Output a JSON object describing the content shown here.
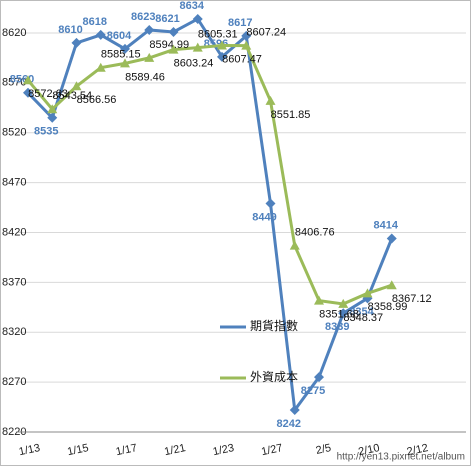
{
  "chart_data": {
    "type": "line",
    "categories": [
      "1/13",
      null,
      "1/15",
      null,
      "1/17",
      null,
      "1/21",
      null,
      "1/23",
      null,
      "1/27",
      null,
      "2/5",
      null,
      "2/10",
      null,
      "2/12"
    ],
    "series": [
      {
        "name": "期貨指數",
        "color": "#4f81bd",
        "marker": "diamond",
        "values": [
          8560,
          8535,
          8610,
          8618,
          8604,
          8623,
          8621,
          8634,
          8596,
          8617,
          8449,
          8242,
          8275,
          8339,
          8354,
          8414,
          null
        ]
      },
      {
        "name": "外資成本",
        "color": "#9bbb59",
        "marker": "triangle",
        "values": [
          8572.63,
          8543.54,
          8566.56,
          8585.15,
          8589.46,
          8594.99,
          8603.24,
          8605.31,
          8607.47,
          8607.24,
          8551.85,
          8406.76,
          8351.68,
          8348.37,
          8358.99,
          8367.12,
          null
        ]
      }
    ],
    "ylim": [
      8220,
      8645
    ],
    "yticks": [
      8220,
      8270,
      8320,
      8370,
      8420,
      8470,
      8520,
      8570,
      8620
    ],
    "grid": true,
    "watermark": "http://yen13.pixnet.net/album"
  }
}
